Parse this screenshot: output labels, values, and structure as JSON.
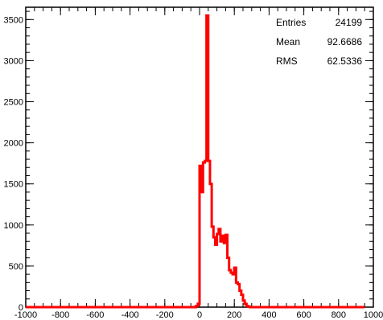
{
  "chart_data": {
    "type": "histogram",
    "title": "",
    "xlabel": "",
    "ylabel": "",
    "xlim": [
      -1000,
      1000
    ],
    "ylim": [
      0,
      3650
    ],
    "x_ticks": [
      -1000,
      -800,
      -600,
      -400,
      -200,
      0,
      200,
      400,
      600,
      800,
      1000
    ],
    "y_ticks": [
      0,
      500,
      1000,
      1500,
      2000,
      2500,
      3000,
      3500
    ],
    "grid": false,
    "line_color": "#ff0000",
    "bin_width": 10,
    "bins_x": [
      -1000,
      -990,
      -980,
      -970,
      -960,
      -950,
      -940,
      -930,
      -920,
      -910,
      -900,
      -890,
      -880,
      -870,
      -860,
      -850,
      -840,
      -830,
      -820,
      -810,
      -800,
      -790,
      -780,
      -770,
      -760,
      -750,
      -740,
      -730,
      -720,
      -710,
      -700,
      -690,
      -680,
      -670,
      -660,
      -650,
      -640,
      -630,
      -620,
      -610,
      -600,
      -590,
      -580,
      -570,
      -560,
      -550,
      -540,
      -530,
      -520,
      -510,
      -500,
      -490,
      -480,
      -470,
      -460,
      -450,
      -440,
      -430,
      -420,
      -410,
      -400,
      -390,
      -380,
      -370,
      -360,
      -350,
      -340,
      -330,
      -320,
      -310,
      -300,
      -290,
      -280,
      -270,
      -260,
      -250,
      -240,
      -230,
      -220,
      -210,
      -200,
      -190,
      -180,
      -170,
      -160,
      -150,
      -140,
      -130,
      -120,
      -110,
      -100,
      -90,
      -80,
      -70,
      -60,
      -50,
      -40,
      -30,
      -20,
      -10,
      0,
      10,
      20,
      30,
      40,
      50,
      60,
      70,
      80,
      90,
      100,
      110,
      120,
      130,
      140,
      150,
      160,
      170,
      180,
      190,
      200,
      210,
      220,
      230,
      240,
      250,
      260,
      270,
      280,
      290,
      300,
      310,
      320,
      330,
      340,
      350,
      360,
      370,
      380,
      390,
      400,
      410,
      420,
      430,
      440,
      450,
      460,
      470,
      480,
      490,
      500,
      510,
      520,
      530,
      540,
      550,
      560,
      570,
      580,
      590,
      600,
      610,
      620,
      630,
      640,
      650,
      660,
      670,
      680,
      690,
      700,
      710,
      720,
      730,
      740,
      750,
      760,
      770,
      780,
      790,
      800,
      810,
      820,
      830,
      840,
      850,
      860,
      870,
      880,
      890,
      900,
      910,
      920,
      930,
      940,
      950,
      960,
      970,
      980,
      990
    ],
    "bins_y": [
      0,
      0,
      0,
      0,
      0,
      0,
      0,
      0,
      0,
      0,
      0,
      0,
      0,
      0,
      0,
      0,
      0,
      0,
      0,
      0,
      0,
      0,
      0,
      0,
      0,
      0,
      0,
      0,
      0,
      0,
      0,
      0,
      0,
      0,
      0,
      0,
      0,
      0,
      0,
      0,
      0,
      0,
      0,
      0,
      0,
      0,
      0,
      0,
      0,
      0,
      0,
      0,
      0,
      0,
      0,
      0,
      0,
      0,
      0,
      0,
      0,
      0,
      0,
      0,
      0,
      0,
      0,
      0,
      0,
      0,
      0,
      0,
      0,
      0,
      0,
      0,
      0,
      0,
      0,
      0,
      0,
      0,
      0,
      0,
      0,
      0,
      0,
      0,
      0,
      0,
      0,
      0,
      0,
      0,
      0,
      0,
      0,
      0,
      15,
      40,
      1720,
      1400,
      1760,
      1780,
      3550,
      1780,
      1500,
      980,
      850,
      760,
      890,
      950,
      800,
      870,
      780,
      880,
      600,
      450,
      420,
      400,
      480,
      300,
      280,
      200,
      150,
      80,
      40,
      15,
      5,
      0,
      0,
      0,
      0,
      0,
      0,
      0,
      0,
      0,
      0,
      0,
      0,
      0,
      0,
      0,
      0,
      0,
      0,
      0,
      0,
      0,
      0,
      0,
      0,
      0,
      0,
      0,
      0,
      0,
      0,
      0,
      0,
      0,
      0,
      0,
      0,
      0,
      0,
      0,
      0,
      0,
      0,
      0,
      0,
      0,
      0,
      0,
      0,
      0,
      0,
      0,
      0,
      0,
      0,
      0,
      0,
      0,
      0,
      0,
      0,
      0,
      0,
      0,
      0,
      0,
      0
    ]
  },
  "stats": {
    "entries_label": "Entries",
    "entries_value": "24199",
    "mean_label": "Mean",
    "mean_value": "92.6686",
    "rms_label": "RMS",
    "rms_value": "62.5336"
  }
}
